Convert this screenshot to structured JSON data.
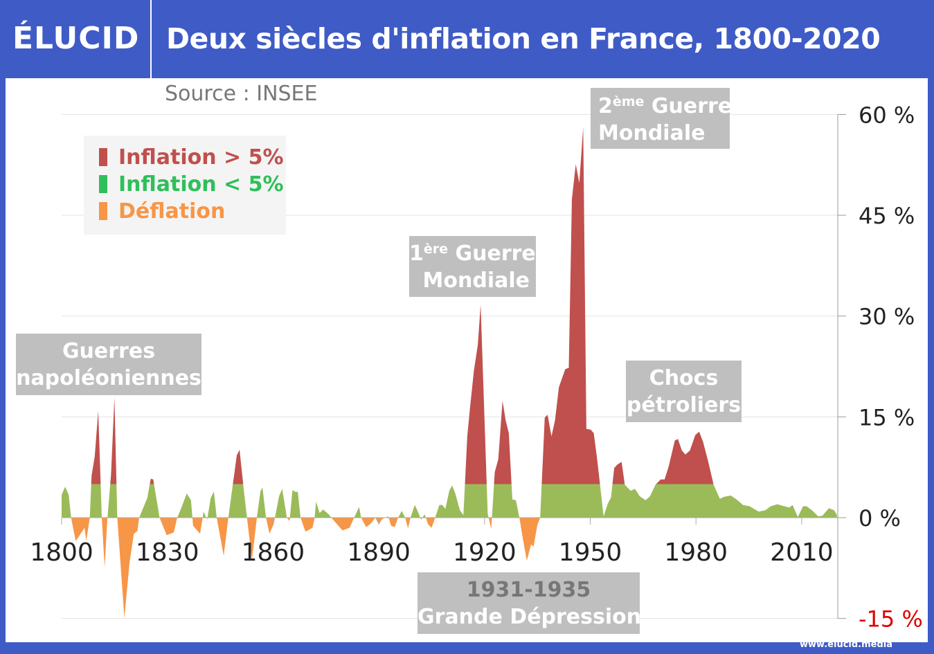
{
  "header": {
    "logo": "ÉLUCID",
    "title": "Deux siècles d'inflation en France, 1800-2020"
  },
  "source": "Source : INSEE",
  "footer": "www.elucid.media",
  "colors": {
    "brand_blue": "#3f5bc6",
    "inflation_high": "#c0504d",
    "inflation_low": "#9bbb59",
    "deflation": "#f79646",
    "annotation_bg": "#bfbfbf",
    "negative_tick": "#e00000"
  },
  "legend": [
    {
      "label": "Inflation > 5%",
      "color": "#c0504d"
    },
    {
      "label": "Inflation < 5%",
      "color": "#2fbf5a"
    },
    {
      "label": "Déflation",
      "color": "#f79646"
    }
  ],
  "annotations": {
    "napoleon": {
      "line1": "Guerres",
      "line2": "napoléoniennes"
    },
    "ww1": {
      "num": "1",
      "sup": "ère",
      "line1": "Guerre",
      "line2": "Mondiale"
    },
    "ww2": {
      "num": "2",
      "sup": "ème",
      "line1": "Guerre",
      "line2": "Mondiale"
    },
    "oil": {
      "line1": "Chocs",
      "line2": "pétroliers"
    },
    "depression": {
      "line1": "1931-1935",
      "line2": "Grande Dépression"
    }
  },
  "chart_data": {
    "type": "area",
    "title": "Deux siècles d'inflation en France, 1800-2020",
    "xlabel": "",
    "ylabel": "",
    "xlim": [
      1800,
      2020
    ],
    "ylim": [
      -15,
      60
    ],
    "x_ticks": [
      "1800",
      "1830",
      "1860",
      "1890",
      "1920",
      "1950",
      "1980",
      "2010"
    ],
    "y_ticks": [
      "60 %",
      "45 %",
      "30 %",
      "15 %",
      "0 %",
      "-15 %"
    ],
    "grid": true,
    "legend_position": "top-left",
    "thresholds": {
      "high": 5,
      "zero": 0
    },
    "points": [
      [
        1800,
        3.4
      ],
      [
        1801,
        4.6
      ],
      [
        1802,
        3.4
      ],
      [
        1802.7,
        0
      ],
      [
        1804,
        -3.5
      ],
      [
        1806.5,
        -1.5
      ],
      [
        1807,
        -3.5
      ],
      [
        1808,
        0
      ],
      [
        1808.5,
        6.3
      ],
      [
        1809.4,
        9.1
      ],
      [
        1810.4,
        15.9
      ],
      [
        1811.4,
        0
      ],
      [
        1812.2,
        -7.4
      ],
      [
        1813,
        0
      ],
      [
        1814,
        6.3
      ],
      [
        1815,
        17.9
      ],
      [
        1815.8,
        0
      ],
      [
        1817.8,
        -14.9
      ],
      [
        1819.3,
        -6.6
      ],
      [
        1820.5,
        -2.4
      ],
      [
        1821.5,
        -2.0
      ],
      [
        1822,
        0
      ],
      [
        1824.3,
        2.9
      ],
      [
        1825.3,
        5.8
      ],
      [
        1826,
        5.7
      ],
      [
        1827.8,
        0
      ],
      [
        1829.8,
        -2.6
      ],
      [
        1831.8,
        -2.2
      ],
      [
        1832.8,
        0
      ],
      [
        1834,
        1.5
      ],
      [
        1835.5,
        3.6
      ],
      [
        1836.7,
        2.6
      ],
      [
        1837.3,
        -1.2
      ],
      [
        1839.3,
        -2.4
      ],
      [
        1840.3,
        0.9
      ],
      [
        1841.3,
        -0.3
      ],
      [
        1842.3,
        2.9
      ],
      [
        1843.2,
        3.9
      ],
      [
        1844,
        0
      ],
      [
        1846,
        -5.7
      ],
      [
        1847.3,
        0
      ],
      [
        1849.7,
        9.3
      ],
      [
        1850.5,
        10.1
      ],
      [
        1851.8,
        3.6
      ],
      [
        1852.6,
        0
      ],
      [
        1854,
        -6.3
      ],
      [
        1855.4,
        0
      ],
      [
        1856.4,
        3.9
      ],
      [
        1857,
        4.5
      ],
      [
        1858,
        0
      ],
      [
        1859,
        -2.4
      ],
      [
        1860.2,
        -0.9
      ],
      [
        1861.7,
        3.2
      ],
      [
        1862.6,
        4.3
      ],
      [
        1863.9,
        0
      ],
      [
        1864.7,
        -0.5
      ],
      [
        1865.5,
        4.1
      ],
      [
        1866.5,
        3.8
      ],
      [
        1867,
        3.9
      ],
      [
        1867.8,
        0
      ],
      [
        1869.2,
        -2.1
      ],
      [
        1871.2,
        -1.5
      ],
      [
        1871.8,
        0
      ],
      [
        1872.2,
        2.4
      ],
      [
        1873.2,
        0.7
      ],
      [
        1874.2,
        1.2
      ],
      [
        1875.8,
        0.5
      ],
      [
        1876.5,
        0
      ],
      [
        1879.7,
        -1.9
      ],
      [
        1881.7,
        -1.5
      ],
      [
        1883,
        0
      ],
      [
        1884.4,
        1.6
      ],
      [
        1885,
        0
      ],
      [
        1886.4,
        -1.4
      ],
      [
        1887.7,
        -0.9
      ],
      [
        1889,
        0
      ],
      [
        1890,
        -1.0
      ],
      [
        1891,
        -0.2
      ],
      [
        1892.7,
        0.2
      ],
      [
        1893.5,
        -1.2
      ],
      [
        1894.5,
        -1.4
      ],
      [
        1895.5,
        0
      ],
      [
        1896.5,
        1.0
      ],
      [
        1897.5,
        0
      ],
      [
        1898.3,
        -1.6
      ],
      [
        1899,
        0
      ],
      [
        1900.2,
        1.9
      ],
      [
        1901,
        1.0
      ],
      [
        1902,
        -0.3
      ],
      [
        1903,
        0.5
      ],
      [
        1904,
        -1.0
      ],
      [
        1905,
        -1.5
      ],
      [
        1906,
        0
      ],
      [
        1907.2,
        1.9
      ],
      [
        1908,
        1.9
      ],
      [
        1908.9,
        1.3
      ],
      [
        1910,
        4.0
      ],
      [
        1910.8,
        4.8
      ],
      [
        1911.7,
        3.6
      ],
      [
        1913,
        1.1
      ],
      [
        1914,
        0.4
      ],
      [
        1915.1,
        12.1
      ],
      [
        1915.9,
        16.4
      ],
      [
        1917,
        21.9
      ],
      [
        1918.1,
        25.7
      ],
      [
        1918.9,
        31.7
      ],
      [
        1920.9,
        0.6
      ],
      [
        1921.9,
        -1.7
      ],
      [
        1922.9,
        6.8
      ],
      [
        1923.9,
        8.7
      ],
      [
        1925.1,
        17.4
      ],
      [
        1926,
        14.5
      ],
      [
        1926.9,
        12.6
      ],
      [
        1927.9,
        2.7
      ],
      [
        1928.9,
        2.6
      ],
      [
        1929.9,
        0
      ],
      [
        1930.9,
        -3.2
      ],
      [
        1932,
        -6.4
      ],
      [
        1933.2,
        -4.0
      ],
      [
        1933.9,
        -4.3
      ],
      [
        1935,
        -1.1
      ],
      [
        1935.8,
        0
      ],
      [
        1937.1,
        14.9
      ],
      [
        1937.9,
        15.3
      ],
      [
        1939,
        12.1
      ],
      [
        1940,
        14.5
      ],
      [
        1941.1,
        19.4
      ],
      [
        1942.9,
        22.1
      ],
      [
        1943.9,
        22.3
      ],
      [
        1944.8,
        47.4
      ],
      [
        1945.9,
        52.6
      ],
      [
        1946.9,
        49.8
      ],
      [
        1948,
        58.1
      ],
      [
        1948.9,
        13.2
      ],
      [
        1950.1,
        13.1
      ],
      [
        1951,
        12.6
      ],
      [
        1952,
        8.5
      ],
      [
        1953.8,
        0.2
      ],
      [
        1955,
        2.1
      ],
      [
        1955.9,
        3.0
      ],
      [
        1956.8,
        7.4
      ],
      [
        1957.7,
        7.9
      ],
      [
        1958.9,
        8.3
      ],
      [
        1959.8,
        4.9
      ],
      [
        1961.5,
        4.0
      ],
      [
        1962.7,
        4.3
      ],
      [
        1964,
        3.2
      ],
      [
        1965.7,
        2.6
      ],
      [
        1967,
        3.2
      ],
      [
        1968.5,
        4.9
      ],
      [
        1970,
        5.7
      ],
      [
        1971.1,
        5.7
      ],
      [
        1972.3,
        7.7
      ],
      [
        1974,
        11.5
      ],
      [
        1974.9,
        11.7
      ],
      [
        1976,
        10.0
      ],
      [
        1977,
        9.4
      ],
      [
        1978.3,
        10.0
      ],
      [
        1979.8,
        12.3
      ],
      [
        1980.9,
        12.8
      ],
      [
        1982,
        11.3
      ],
      [
        1983.5,
        8.3
      ],
      [
        1985,
        4.9
      ],
      [
        1986.8,
        2.8
      ],
      [
        1988,
        3.1
      ],
      [
        1989.9,
        3.3
      ],
      [
        1991.8,
        2.6
      ],
      [
        1993.3,
        1.9
      ],
      [
        1995.2,
        1.7
      ],
      [
        1997.8,
        0.9
      ],
      [
        1999.7,
        1.1
      ],
      [
        2001.2,
        1.7
      ],
      [
        2003.1,
        2.0
      ],
      [
        2005,
        1.7
      ],
      [
        2006.5,
        1.5
      ],
      [
        2007.4,
        1.9
      ],
      [
        2008.9,
        0.1
      ],
      [
        2010.4,
        1.7
      ],
      [
        2011.4,
        1.7
      ],
      [
        2012.9,
        1.1
      ],
      [
        2014.7,
        0.2
      ],
      [
        2015.9,
        0.3
      ],
      [
        2017.7,
        1.4
      ],
      [
        2019.2,
        1.1
      ],
      [
        2020,
        0.4
      ]
    ]
  }
}
